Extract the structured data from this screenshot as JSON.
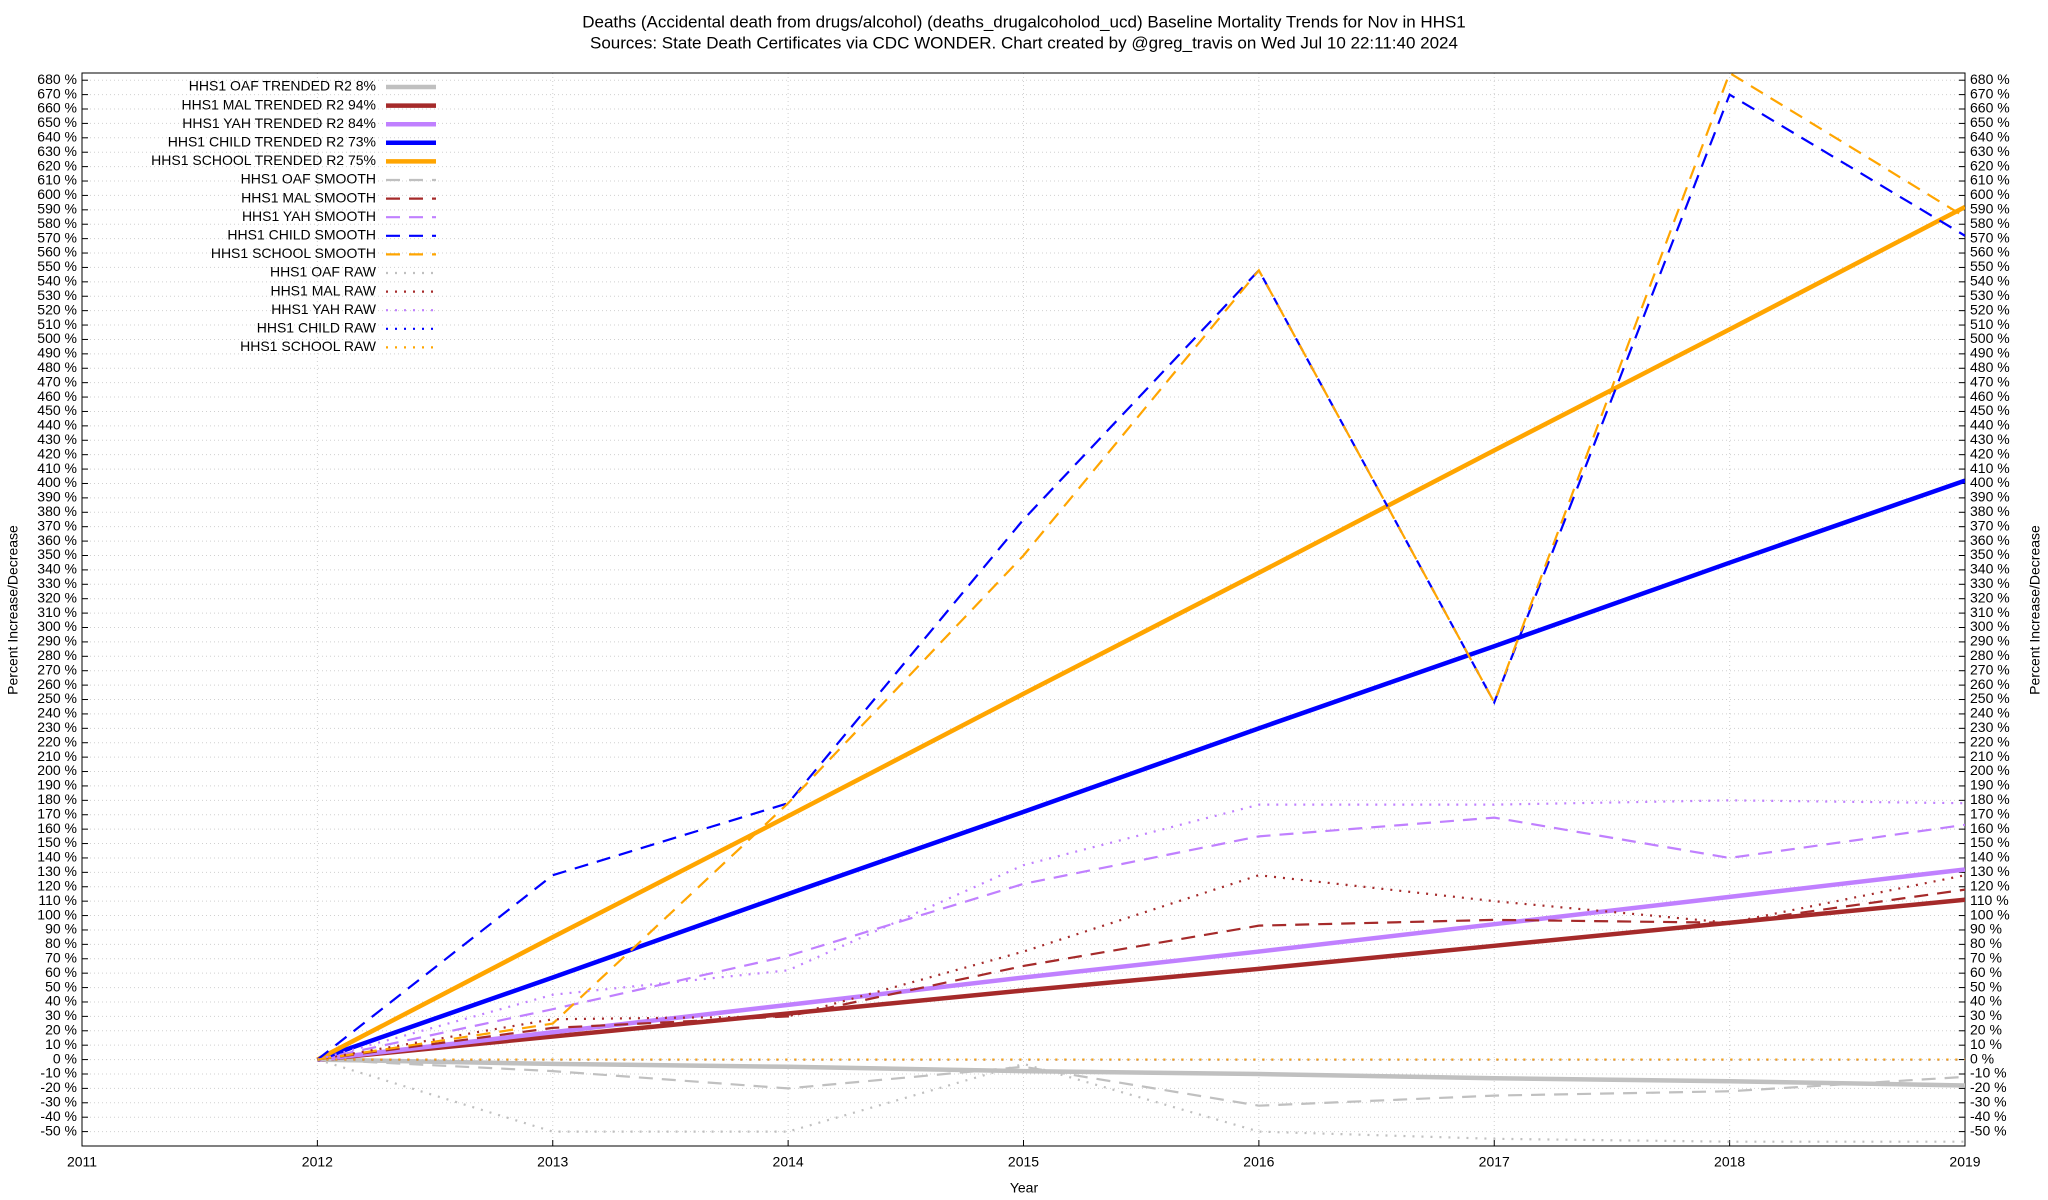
{
  "chart_data": {
    "type": "line",
    "title": "Deaths (Accidental death from drugs/alcohol) (deaths_drugalcoholod_ucd)  Baseline Mortality Trends for Nov in HHS1",
    "subtitle": "Sources: State Death Certificates via CDC WONDER.            Chart created by @greg_travis on Wed Jul 10 22:11:40 2024",
    "xlabel": "Year",
    "ylabel": "Percent Increase/Decrease",
    "y2label": "Percent Increase/Decrease",
    "grid": true,
    "legend": "top-left",
    "xlim": [
      2011,
      2019
    ],
    "xticks": [
      2011,
      2012,
      2013,
      2014,
      2015,
      2016,
      2017,
      2018,
      2019
    ],
    "ylim": [
      -60,
      685
    ],
    "yticks": [
      {
        "value": -50,
        "label": "-50 %"
      },
      {
        "value": -40,
        "label": "-40 %"
      },
      {
        "value": -30,
        "label": "-30 %"
      },
      {
        "value": -20,
        "label": "-20 %"
      },
      {
        "value": -10,
        "label": "-10 %"
      },
      {
        "value": 0,
        "label": "0 %"
      },
      {
        "value": 10,
        "label": "10 %"
      },
      {
        "value": 20,
        "label": "20 %"
      },
      {
        "value": 30,
        "label": "30 %"
      },
      {
        "value": 40,
        "label": "40 %"
      },
      {
        "value": 50,
        "label": "50 %"
      },
      {
        "value": 60,
        "label": "60 %"
      },
      {
        "value": 70,
        "label": "70 %"
      },
      {
        "value": 80,
        "label": "80 %"
      },
      {
        "value": 90,
        "label": "90 %"
      },
      {
        "value": 100,
        "label": "100 %"
      },
      {
        "value": 110,
        "label": "110 %"
      },
      {
        "value": 120,
        "label": "120 %"
      },
      {
        "value": 130,
        "label": "130 %"
      },
      {
        "value": 140,
        "label": "140 %"
      },
      {
        "value": 150,
        "label": "150 %"
      },
      {
        "value": 160,
        "label": "160 %"
      },
      {
        "value": 170,
        "label": "170 %"
      },
      {
        "value": 180,
        "label": "180 %"
      },
      {
        "value": 190,
        "label": "190 %"
      },
      {
        "value": 200,
        "label": "200 %"
      },
      {
        "value": 210,
        "label": "210 %"
      },
      {
        "value": 220,
        "label": "220 %"
      },
      {
        "value": 230,
        "label": "230 %"
      },
      {
        "value": 240,
        "label": "240 %"
      },
      {
        "value": 250,
        "label": "250 %"
      },
      {
        "value": 260,
        "label": "260 %"
      },
      {
        "value": 270,
        "label": "270 %"
      },
      {
        "value": 280,
        "label": "280 %"
      },
      {
        "value": 290,
        "label": "290 %"
      },
      {
        "value": 300,
        "label": "300 %"
      },
      {
        "value": 310,
        "label": "310 %"
      },
      {
        "value": 320,
        "label": "320 %"
      },
      {
        "value": 330,
        "label": "330 %"
      },
      {
        "value": 340,
        "label": "340 %"
      },
      {
        "value": 350,
        "label": "350 %"
      },
      {
        "value": 360,
        "label": "360 %"
      },
      {
        "value": 370,
        "label": "370 %"
      },
      {
        "value": 380,
        "label": "380 %"
      },
      {
        "value": 390,
        "label": "390 %"
      },
      {
        "value": 400,
        "label": "400 %"
      },
      {
        "value": 410,
        "label": "410 %"
      },
      {
        "value": 420,
        "label": "420 %"
      },
      {
        "value": 430,
        "label": "430 %"
      },
      {
        "value": 440,
        "label": "440 %"
      },
      {
        "value": 450,
        "label": "450 %"
      },
      {
        "value": 460,
        "label": "460 %"
      },
      {
        "value": 470,
        "label": "470 %"
      },
      {
        "value": 480,
        "label": "480 %"
      },
      {
        "value": 490,
        "label": "490 %"
      },
      {
        "value": 500,
        "label": "500 %"
      },
      {
        "value": 510,
        "label": "510 %"
      },
      {
        "value": 520,
        "label": "520 %"
      },
      {
        "value": 530,
        "label": "530 %"
      },
      {
        "value": 540,
        "label": "540 %"
      },
      {
        "value": 550,
        "label": "550 %"
      },
      {
        "value": 560,
        "label": "560 %"
      },
      {
        "value": 570,
        "label": "570 %"
      },
      {
        "value": 580,
        "label": "580 %"
      },
      {
        "value": 590,
        "label": "590 %"
      },
      {
        "value": 600,
        "label": "600 %"
      },
      {
        "value": 610,
        "label": "610 %"
      },
      {
        "value": 620,
        "label": "620 %"
      },
      {
        "value": 630,
        "label": "630 %"
      },
      {
        "value": 640,
        "label": "640 %"
      },
      {
        "value": 650,
        "label": "650 %"
      },
      {
        "value": 660,
        "label": "660 %"
      },
      {
        "value": 670,
        "label": "670 %"
      },
      {
        "value": 680,
        "label": "680 %"
      }
    ],
    "y2lim": [
      -60,
      685
    ],
    "y2ticks": [
      {
        "value": -50,
        "label": "-50 %"
      },
      {
        "value": -40,
        "label": "-40 %"
      },
      {
        "value": -30,
        "label": "-30 %"
      },
      {
        "value": -20,
        "label": "-20 %"
      },
      {
        "value": -10,
        "label": "-10 %"
      },
      {
        "value": 0,
        "label": "0 %"
      },
      {
        "value": 10,
        "label": "10 %"
      },
      {
        "value": 20,
        "label": "20 %"
      },
      {
        "value": 30,
        "label": "30 %"
      },
      {
        "value": 40,
        "label": "40 %"
      },
      {
        "value": 50,
        "label": "50 %"
      },
      {
        "value": 60,
        "label": "60 %"
      },
      {
        "value": 70,
        "label": "70 %"
      },
      {
        "value": 80,
        "label": "80 %"
      },
      {
        "value": 90,
        "label": "90 %"
      },
      {
        "value": 100,
        "label": "100 %"
      },
      {
        "value": 110,
        "label": "110 %"
      },
      {
        "value": 120,
        "label": "120 %"
      },
      {
        "value": 130,
        "label": "130 %"
      },
      {
        "value": 140,
        "label": "140 %"
      },
      {
        "value": 150,
        "label": "150 %"
      },
      {
        "value": 160,
        "label": "160 %"
      },
      {
        "value": 170,
        "label": "170 %"
      },
      {
        "value": 180,
        "label": "180 %"
      },
      {
        "value": 190,
        "label": "190 %"
      },
      {
        "value": 200,
        "label": "200 %"
      },
      {
        "value": 210,
        "label": "210 %"
      },
      {
        "value": 220,
        "label": "220 %"
      },
      {
        "value": 230,
        "label": "230 %"
      },
      {
        "value": 240,
        "label": "240 %"
      },
      {
        "value": 250,
        "label": "250 %"
      },
      {
        "value": 260,
        "label": "260 %"
      },
      {
        "value": 270,
        "label": "270 %"
      },
      {
        "value": 280,
        "label": "280 %"
      },
      {
        "value": 290,
        "label": "290 %"
      },
      {
        "value": 300,
        "label": "300 %"
      },
      {
        "value": 310,
        "label": "310 %"
      },
      {
        "value": 320,
        "label": "320 %"
      },
      {
        "value": 330,
        "label": "330 %"
      },
      {
        "value": 340,
        "label": "340 %"
      },
      {
        "value": 350,
        "label": "350 %"
      },
      {
        "value": 360,
        "label": "360 %"
      },
      {
        "value": 370,
        "label": "370 %"
      },
      {
        "value": 380,
        "label": "380 %"
      },
      {
        "value": 390,
        "label": "390 %"
      },
      {
        "value": 400,
        "label": "400 %"
      },
      {
        "value": 410,
        "label": "410 %"
      },
      {
        "value": 420,
        "label": "420 %"
      },
      {
        "value": 430,
        "label": "430 %"
      },
      {
        "value": 440,
        "label": "440 %"
      },
      {
        "value": 450,
        "label": "450 %"
      },
      {
        "value": 460,
        "label": "460 %"
      },
      {
        "value": 470,
        "label": "470 %"
      },
      {
        "value": 480,
        "label": "480 %"
      },
      {
        "value": 490,
        "label": "490 %"
      },
      {
        "value": 500,
        "label": "500 %"
      },
      {
        "value": 510,
        "label": "510 %"
      },
      {
        "value": 520,
        "label": "520 %"
      },
      {
        "value": 530,
        "label": "530 %"
      },
      {
        "value": 540,
        "label": "540 %"
      },
      {
        "value": 550,
        "label": "550 %"
      },
      {
        "value": 560,
        "label": "560 %"
      },
      {
        "value": 570,
        "label": "570 %"
      },
      {
        "value": 580,
        "label": "580 %"
      },
      {
        "value": 590,
        "label": "590 %"
      },
      {
        "value": 600,
        "label": "600 %"
      },
      {
        "value": 610,
        "label": "610 %"
      },
      {
        "value": 620,
        "label": "620 %"
      },
      {
        "value": 630,
        "label": "630 %"
      },
      {
        "value": 640,
        "label": "640 %"
      },
      {
        "value": 650,
        "label": "650 %"
      },
      {
        "value": 660,
        "label": "660 %"
      },
      {
        "value": 670,
        "label": "670 %"
      },
      {
        "value": 680,
        "label": "680 %"
      }
    ],
    "x": [
      2012,
      2013,
      2014,
      2015,
      2016,
      2017,
      2018,
      2019
    ],
    "series": [
      {
        "name": "HHS1 OAF TRENDED R2  8%",
        "color": "#c0c0c0",
        "style": "solid",
        "values": [
          0,
          -3,
          -5,
          -8,
          -10,
          -13,
          -15,
          -18
        ]
      },
      {
        "name": "HHS1 MAL TRENDED R2  94%",
        "color": "#a52a2a",
        "style": "solid",
        "values": [
          0,
          16,
          32,
          48,
          63,
          79,
          95,
          111
        ]
      },
      {
        "name": "HHS1 YAH TRENDED R2  84%",
        "color": "#c080ff",
        "style": "solid",
        "values": [
          0,
          19,
          38,
          57,
          75,
          94,
          113,
          132
        ]
      },
      {
        "name": "HHS1 CHILD TRENDED R2  73%",
        "color": "#0000ff",
        "style": "solid",
        "values": [
          0,
          57,
          115,
          172,
          230,
          287,
          345,
          402
        ]
      },
      {
        "name": "HHS1 SCHOOL TRENDED R2  75%",
        "color": "#ffa500",
        "style": "solid",
        "values": [
          0,
          85,
          169,
          254,
          338,
          423,
          507,
          592
        ]
      },
      {
        "name": "HHS1 OAF SMOOTH",
        "color": "#c0c0c0",
        "style": "dashed",
        "values": [
          0,
          -8,
          -20,
          -5,
          -32,
          -25,
          -22,
          -12
        ]
      },
      {
        "name": "HHS1 MAL SMOOTH",
        "color": "#a52a2a",
        "style": "dashed",
        "values": [
          0,
          22,
          30,
          65,
          93,
          97,
          95,
          118
        ]
      },
      {
        "name": "HHS1 YAH SMOOTH",
        "color": "#c080ff",
        "style": "dashed",
        "values": [
          0,
          35,
          72,
          122,
          155,
          168,
          140,
          163
        ]
      },
      {
        "name": "HHS1 CHILD SMOOTH",
        "color": "#0000ff",
        "style": "dashed",
        "values": [
          0,
          128,
          178,
          375,
          548,
          248,
          670,
          572
        ]
      },
      {
        "name": "HHS1 SCHOOL SMOOTH",
        "color": "#ffa500",
        "style": "dashed",
        "values": [
          0,
          25,
          178,
          350,
          548,
          248,
          685,
          585
        ]
      },
      {
        "name": "HHS1 OAF RAW",
        "color": "#c0c0c0",
        "style": "dotted",
        "values": [
          0,
          -50,
          -50,
          -3,
          -50,
          -55,
          -57,
          -57
        ]
      },
      {
        "name": "HHS1 MAL RAW",
        "color": "#a52a2a",
        "style": "dotted",
        "values": [
          0,
          28,
          30,
          75,
          128,
          110,
          95,
          128
        ]
      },
      {
        "name": "HHS1 YAH RAW",
        "color": "#c080ff",
        "style": "dotted",
        "values": [
          0,
          45,
          62,
          135,
          177,
          177,
          180,
          178
        ]
      },
      {
        "name": "HHS1 CHILD RAW",
        "color": "#0000ff",
        "style": "dotted",
        "values": [
          0,
          0,
          0,
          0,
          0,
          0,
          0,
          0
        ]
      },
      {
        "name": "HHS1 SCHOOL RAW",
        "color": "#ffa500",
        "style": "dotted",
        "values": [
          0,
          0,
          0,
          0,
          0,
          0,
          0,
          0
        ]
      }
    ]
  }
}
